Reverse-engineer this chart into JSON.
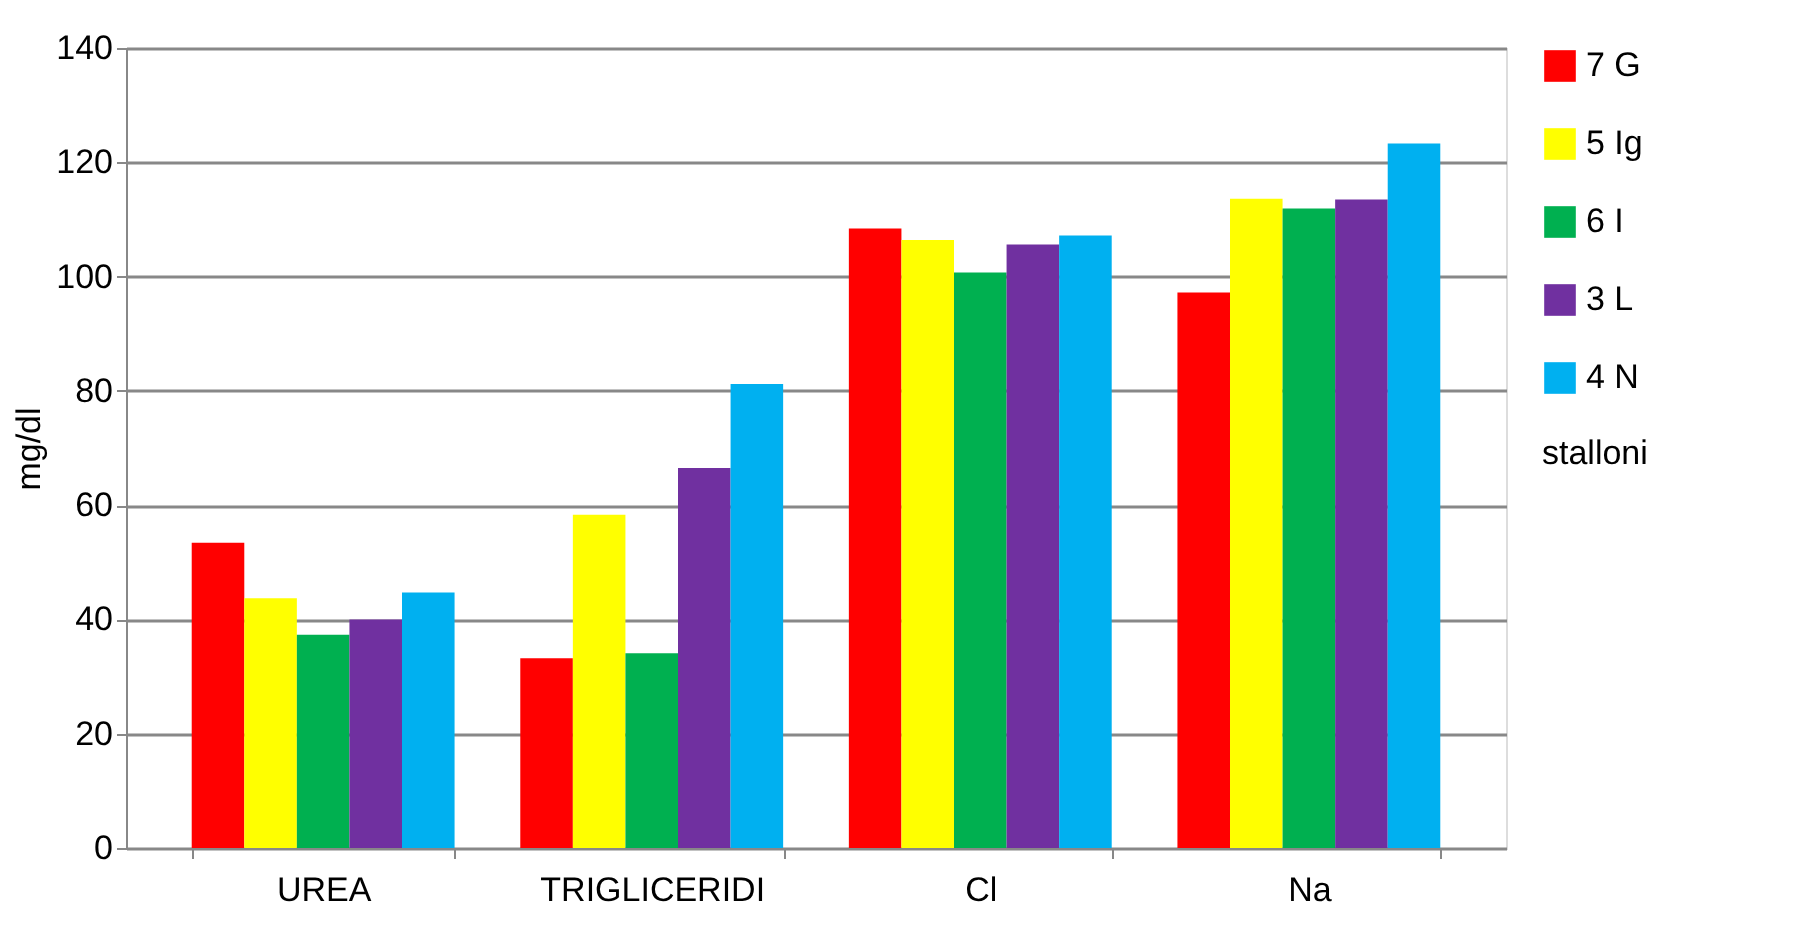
{
  "chart_data": {
    "type": "bar",
    "ylabel": "mg/dl",
    "legend_title": "stalloni",
    "categories": [
      "UREA",
      "TRIGLICERIDI",
      "Cl",
      "Na"
    ],
    "series": [
      {
        "name": "7 G",
        "color": "#ff0000",
        "values": [
          53.4,
          33.2,
          108.4,
          97.2
        ]
      },
      {
        "name": "5 Ig",
        "color": "#ffff00",
        "values": [
          43.7,
          58.3,
          106.4,
          113.6
        ]
      },
      {
        "name": "6 I",
        "color": "#00b050",
        "values": [
          37.3,
          34.1,
          100.7,
          111.9
        ]
      },
      {
        "name": "3 L",
        "color": "#7030a0",
        "values": [
          40.0,
          66.5,
          105.6,
          113.5
        ]
      },
      {
        "name": "4 N",
        "color": "#00b0f0",
        "values": [
          44.7,
          81.2,
          107.2,
          123.3
        ]
      }
    ],
    "ylim": [
      0,
      140
    ],
    "yticks": [
      0,
      20,
      40,
      60,
      80,
      100,
      120,
      140
    ],
    "grid": "y",
    "legend": "right"
  }
}
